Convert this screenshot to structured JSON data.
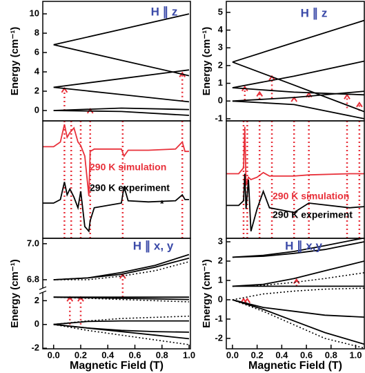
{
  "chart_data": [
    {
      "type": "line",
      "title": "H ∥ z",
      "ylabel": "Energy (cm⁻¹)",
      "xlim": [
        -0.08,
        1.01
      ],
      "ylim": [
        -1.07,
        11.29
      ],
      "yticks": [
        0,
        2,
        4,
        6,
        8,
        10
      ],
      "x": [
        0,
        0.5,
        1
      ],
      "series": [
        {
          "color": "#000000",
          "values": [
            6.8,
            8.4,
            10
          ]
        },
        {
          "color": "#000000",
          "values": [
            6.8,
            5.2,
            3.6
          ]
        },
        {
          "color": "#000000",
          "values": [
            2.4,
            3.3,
            4.2
          ]
        },
        {
          "color": "#000000",
          "values": [
            2.4,
            1.65,
            0.9
          ]
        },
        {
          "color": "#000000",
          "values": [
            0,
            0.25,
            0.1
          ]
        },
        {
          "color": "#000000",
          "values": [
            0,
            -0.1,
            -0.5
          ]
        }
      ],
      "transitions": [
        {
          "x": 0.08,
          "from": 0,
          "to": 2.3
        },
        {
          "x": 0.27,
          "from": -0.1,
          "to": 0.15
        },
        {
          "x": 0.95,
          "from": 0.95,
          "to": 3.9
        }
      ],
      "transition_color": "#e8303a"
    },
    {
      "type": "line",
      "xlim": [
        -0.08,
        1.01
      ],
      "ylim": [
        0,
        10
      ],
      "x": [
        -0.08,
        0,
        0.05,
        0.08,
        0.1,
        0.12,
        0.15,
        0.18,
        0.2,
        0.23,
        0.26,
        0.27,
        0.3,
        0.4,
        0.5,
        0.52,
        0.55,
        0.7,
        0.9,
        0.95,
        0.97,
        1.0
      ],
      "series": [
        {
          "color": "#e8303a",
          "values": [
            7.8,
            7.8,
            8.2,
            9.7,
            8.6,
            9.0,
            9.4,
            8.2,
            7.9,
            7.0,
            3.6,
            7.4,
            7.6,
            7.6,
            7.6,
            7.0,
            7.5,
            7.5,
            7.6,
            8.2,
            7.4,
            7.4
          ]
        },
        {
          "color": "#000000",
          "values": [
            3.0,
            3.0,
            3.3,
            4.8,
            3.7,
            4.2,
            3.5,
            2.6,
            4.0,
            1.0,
            0.6,
            1.5,
            2.6,
            2.8,
            3.0,
            4.4,
            3.2,
            3.1,
            3.2,
            3.7,
            3.3,
            3.3
          ]
        }
      ],
      "annotations": [
        {
          "text": "290 K simulation",
          "color": "#e8303a"
        },
        {
          "text": "290 K experiment",
          "color": "#000000"
        },
        {
          "text": "*",
          "color": "#000000"
        }
      ],
      "transition_lines": [
        0.08,
        0.13,
        0.2,
        0.27,
        0.51,
        0.95
      ],
      "transition_color": "#e8303a"
    },
    {
      "type": "line",
      "title": "H ∥ x, y",
      "ylabel": "Energy (cm⁻¹)",
      "xlabel": "Magnetic Field (T)",
      "xlim": [
        -0.08,
        1.01
      ],
      "ylim": [
        -2.05,
        7.03
      ],
      "ybreak": [
        2.6,
        6.76
      ],
      "yticks": [
        -2,
        0,
        2,
        6.8,
        {
          "value": 7,
          "label": "7.0"
        }
      ],
      "xticks": [
        {
          "value": 0,
          "label": "0.0"
        },
        0.2,
        0.4,
        0.6,
        0.8,
        {
          "value": 1,
          "label": "1.0"
        }
      ],
      "x": [
        0,
        0.25,
        0.5,
        0.75,
        1.0
      ],
      "series": [
        {
          "color": "#000000",
          "values": [
            6.8,
            6.81,
            6.84,
            6.88,
            6.94
          ]
        },
        {
          "color": "#000000",
          "values": [
            6.8,
            6.81,
            6.83,
            6.87,
            6.92
          ]
        },
        {
          "color": "#000000",
          "dash": true,
          "values": [
            6.8,
            6.8,
            6.82,
            6.85,
            6.9
          ]
        },
        {
          "color": "#000000",
          "values": [
            2.3,
            2.3,
            2.3,
            2.3,
            2.3
          ]
        },
        {
          "color": "#000000",
          "values": [
            2.3,
            2.25,
            2.2,
            2.15,
            2.1
          ]
        },
        {
          "color": "#000000",
          "dash": true,
          "values": [
            2.3,
            2.2,
            2.1,
            2.0,
            1.9
          ]
        },
        {
          "color": "#000000",
          "values": [
            0,
            0.25,
            0.3,
            0.3,
            0.3
          ]
        },
        {
          "color": "#000000",
          "dash": true,
          "values": [
            0,
            0.3,
            0.5,
            0.6,
            0.7
          ]
        },
        {
          "color": "#000000",
          "values": [
            0,
            -0.3,
            -0.5,
            -0.6,
            -0.65
          ]
        },
        {
          "color": "#000000",
          "values": [
            0,
            -0.3,
            -0.6,
            -0.9,
            -1.2
          ]
        },
        {
          "color": "#000000",
          "dash": true,
          "values": [
            0,
            -0.5,
            -0.9,
            -1.3,
            -1.7
          ]
        }
      ],
      "transitions": [
        {
          "x": 0.12,
          "from": 0,
          "to": 2.3
        },
        {
          "x": 0.2,
          "from": 0,
          "to": 2.3
        },
        {
          "x": 0.51,
          "from": 2.3,
          "to": 6.83
        }
      ],
      "transition_color": "#e8303a"
    },
    {
      "type": "line",
      "title": "H ∥ z",
      "ylabel": "Energy (cm⁻¹)",
      "xlim": [
        -0.05,
        1.07
      ],
      "ylim": [
        -1.12,
        5.62
      ],
      "yticks": [
        -1,
        0,
        1,
        2,
        3,
        4,
        5
      ],
      "x": [
        0,
        0.5,
        1.07
      ],
      "series": [
        {
          "color": "#000000",
          "values": [
            2.2,
            3.3,
            4.55
          ]
        },
        {
          "color": "#000000",
          "values": [
            2.2,
            0.9,
            -0.6
          ]
        },
        {
          "color": "#000000",
          "values": [
            0.75,
            1.4,
            2.25
          ]
        },
        {
          "color": "#000000",
          "values": [
            0.75,
            0.5,
            0.35
          ]
        },
        {
          "color": "#000000",
          "values": [
            0,
            0.2,
            0.55
          ]
        },
        {
          "color": "#000000",
          "values": [
            0,
            -0.2,
            -1.0
          ]
        }
      ],
      "transitions": [
        {
          "x": 0.1,
          "from": 0.05,
          "to": 0.8
        },
        {
          "x": 0.22,
          "from": 0.1,
          "to": 0.5
        },
        {
          "x": 0.32,
          "from": 0.15,
          "to": 1.4
        },
        {
          "x": 0.5,
          "from": 0.1,
          "to": 0.2
        },
        {
          "x": 0.62,
          "from": 0.2,
          "to": 0.45
        },
        {
          "x": 0.93,
          "from": -0.4,
          "to": 0.35
        },
        {
          "x": 1.03,
          "from": -0.55,
          "to": -0.1
        }
      ],
      "transition_color": "#e8303a"
    },
    {
      "type": "line",
      "xlim": [
        -0.05,
        1.07
      ],
      "ylim": [
        0,
        10
      ],
      "x": [
        -0.05,
        0.05,
        0.09,
        0.1,
        0.11,
        0.13,
        0.15,
        0.2,
        0.25,
        0.3,
        0.5,
        0.62,
        0.95,
        1.07
      ],
      "series": [
        {
          "color": "#e8303a",
          "values": [
            5.5,
            5.5,
            6.0,
            9.5,
            4.5,
            5.2,
            5.0,
            5.2,
            5.6,
            5.3,
            5.3,
            5.4,
            5.5,
            5.5
          ]
        },
        {
          "color": "#000000",
          "values": [
            2.8,
            2.8,
            3.2,
            5.5,
            2.5,
            5.0,
            0.6,
            2.5,
            4.0,
            2.6,
            2.2,
            3.0,
            2.6,
            2.7
          ]
        }
      ],
      "annotations": [
        {
          "text": "290 K simulation",
          "color": "#e8303a"
        },
        {
          "text": "290 K experiment",
          "color": "#000000"
        }
      ],
      "transition_lines": [
        0.09,
        0.12,
        0.22,
        0.32,
        0.5,
        0.62,
        0.93,
        1.03
      ],
      "transition_color": "#e8303a"
    },
    {
      "type": "line",
      "title": "H ∥ x,y",
      "ylabel": "Energy (cm⁻¹)",
      "xlabel": "Magnetic Field (T)",
      "xlim": [
        -0.05,
        1.07
      ],
      "ylim": [
        -2.54,
        3.18
      ],
      "yticks": [
        -2,
        -1,
        0,
        1,
        2,
        3
      ],
      "xticks": [
        {
          "value": 0,
          "label": "0.0"
        },
        0.2,
        0.4,
        0.6,
        0.8,
        {
          "value": 1,
          "label": "1.0"
        }
      ],
      "x": [
        0,
        0.25,
        0.5,
        0.75,
        1.07
      ],
      "series": [
        {
          "color": "#000000",
          "values": [
            2.2,
            2.3,
            2.5,
            2.8,
            3.2
          ]
        },
        {
          "color": "#000000",
          "values": [
            2.2,
            2.25,
            2.4,
            2.6,
            3.0
          ]
        },
        {
          "color": "#000000",
          "values": [
            0.7,
            0.8,
            1.1,
            1.5,
            2.0
          ]
        },
        {
          "color": "#000000",
          "dash": true,
          "values": [
            0.7,
            0.75,
            0.9,
            1.1,
            1.4
          ]
        },
        {
          "color": "#000000",
          "values": [
            0.7,
            0.7,
            0.7,
            0.7,
            0.7
          ]
        },
        {
          "color": "#000000",
          "dash": true,
          "values": [
            0,
            0.3,
            0.45,
            0.55,
            0.6
          ]
        },
        {
          "color": "#000000",
          "values": [
            0,
            -0.4,
            -0.6,
            -0.8,
            -0.9
          ]
        },
        {
          "color": "#000000",
          "values": [
            0,
            -0.5,
            -1.1,
            -1.7,
            -2.3
          ]
        },
        {
          "color": "#000000",
          "dash": true,
          "values": [
            0,
            -0.6,
            -1.3,
            -2.0,
            -2.5
          ]
        }
      ],
      "transitions": [
        {
          "x": 0.09,
          "from": 0,
          "to": 0.05
        },
        {
          "x": 0.12,
          "from": 0,
          "to": 0.05
        },
        {
          "x": 0.52,
          "from": 0.7,
          "to": 1.05
        }
      ],
      "transition_color": "#e8303a"
    }
  ]
}
